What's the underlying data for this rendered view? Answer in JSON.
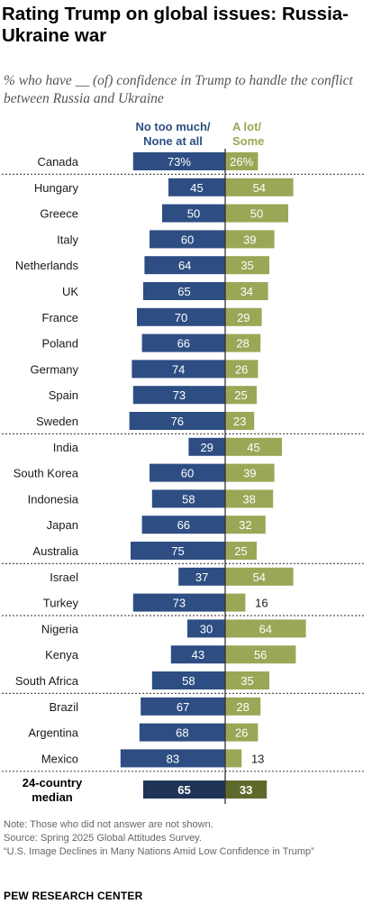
{
  "title": "Rating Trump on global issues: Russia-Ukraine war",
  "subtitle": "% who have __ (of) confidence in Trump to handle the conflict between Russia and Ukraine",
  "notes": {
    "note": "Note: Those who did not answer are not shown.",
    "source": "Source: Spring 2025 Global Attitudes Survey.",
    "report": "“U.S. Image Declines in Many Nations Amid Low Confidence in Trump”"
  },
  "org": "PEW RESEARCH CENTER",
  "colors": {
    "no_confidence": "#2e4e83",
    "confidence": "#9aa756",
    "median_no": "#1f3557",
    "median_yes": "#5e6a2c"
  },
  "chart_data": {
    "type": "bar",
    "orientation": "diverging-horizontal",
    "series": [
      {
        "name": "No too much/ None at all",
        "values": [
          73,
          45,
          50,
          60,
          64,
          65,
          70,
          66,
          74,
          73,
          76,
          29,
          60,
          58,
          66,
          75,
          37,
          73,
          30,
          43,
          58,
          67,
          68,
          83,
          65
        ]
      },
      {
        "name": "A lot/ Some",
        "values": [
          26,
          54,
          50,
          39,
          35,
          34,
          29,
          28,
          26,
          25,
          23,
          45,
          39,
          38,
          32,
          25,
          54,
          16,
          64,
          56,
          35,
          28,
          26,
          13,
          33
        ]
      }
    ],
    "categories": [
      "Canada",
      "Hungary",
      "Greece",
      "Italy",
      "Netherlands",
      "UK",
      "France",
      "Poland",
      "Germany",
      "Spain",
      "Sweden",
      "India",
      "South Korea",
      "Indonesia",
      "Japan",
      "Australia",
      "Israel",
      "Turkey",
      "Nigeria",
      "Kenya",
      "South Africa",
      "Brazil",
      "Argentina",
      "Mexico",
      "24-country median"
    ],
    "value_labels": [
      "73%",
      "45",
      "50",
      "60",
      "64",
      "65",
      "70",
      "66",
      "74",
      "73",
      "76",
      "29",
      "60",
      "58",
      "66",
      "75",
      "37",
      "73",
      "30",
      "43",
      "58",
      "67",
      "68",
      "83",
      "65"
    ],
    "value_labels_right": [
      "26%",
      "54",
      "50",
      "39",
      "35",
      "34",
      "29",
      "28",
      "26",
      "25",
      "23",
      "45",
      "39",
      "38",
      "32",
      "25",
      "54",
      "16",
      "64",
      "56",
      "35",
      "28",
      "26",
      "13",
      "33"
    ],
    "region_breaks_after": [
      "Canada",
      "Sweden",
      "Australia",
      "Turkey",
      "South Africa",
      "Mexico"
    ]
  }
}
